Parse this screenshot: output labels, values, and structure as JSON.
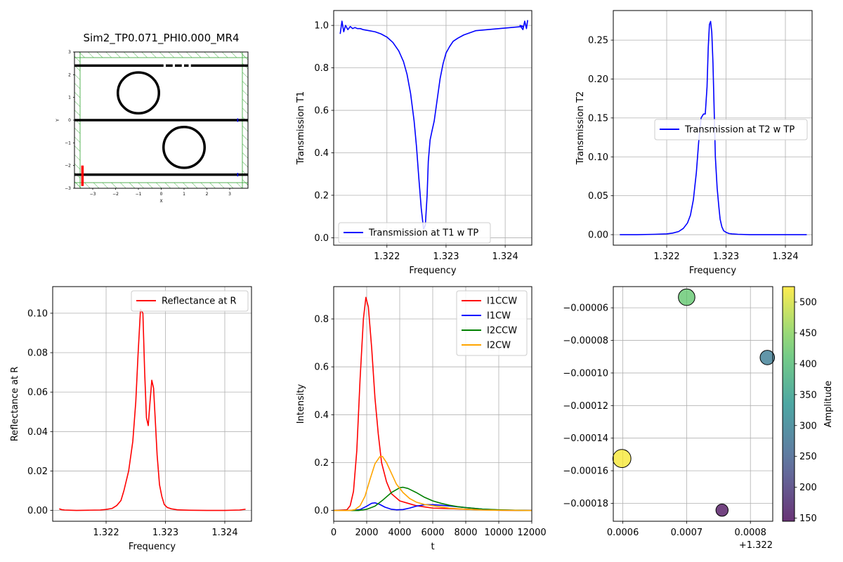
{
  "chart_data": [
    {
      "id": "layout",
      "type": "diagram",
      "title": "Sim2_TP0.071_PHI0.000_MR4",
      "xlabel": "X",
      "ylabel": "Y",
      "xlim": [
        -3.8,
        3.8
      ],
      "ylim": [
        -3,
        3
      ],
      "xticks": [
        -3,
        -2,
        -1,
        0,
        1,
        2,
        3
      ],
      "yticks": [
        -3,
        -2,
        -1,
        0,
        1,
        2,
        3
      ],
      "xtick_labels": [
        "−3",
        "−2",
        "−1",
        "0",
        "1",
        "2",
        "3"
      ],
      "ytick_labels": [
        "−3",
        "−2",
        "−1",
        "0",
        "1",
        "2",
        "3"
      ],
      "waveguides_y": [
        2.4,
        0,
        -2.4
      ],
      "rings": [
        {
          "cx": -1,
          "cy": 1.2,
          "r": 0.9
        },
        {
          "cx": 1,
          "cy": -1.2,
          "r": 0.9
        }
      ],
      "source": {
        "x": -3.45,
        "y0": -2.9,
        "y1": -2.0
      },
      "colors": {
        "structure": "#000000",
        "pml": "#2ca02c",
        "source": "#ff0000",
        "monitor": "#0000ff"
      }
    },
    {
      "id": "t1",
      "type": "line",
      "xlabel": "Frequency",
      "ylabel": "Transmission T1",
      "xlim": [
        1.3211,
        1.32445
      ],
      "ylim": [
        -0.035,
        1.07
      ],
      "xticks": [
        1.322,
        1.323,
        1.324
      ],
      "xtick_labels": [
        "1.322",
        "1.323",
        "1.324"
      ],
      "yticks": [
        0.0,
        0.2,
        0.4,
        0.6,
        0.8,
        1.0
      ],
      "ytick_labels": [
        "0.0",
        "0.2",
        "0.4",
        "0.6",
        "0.8",
        "1.0"
      ],
      "legend": "lower-center",
      "grid": true,
      "series": [
        {
          "name": "Transmission at T1 w TP",
          "color": "#0000ff",
          "x": [
            1.32121,
            1.32124,
            1.32127,
            1.3213,
            1.32134,
            1.32138,
            1.32142,
            1.32146,
            1.3215,
            1.32155,
            1.3216,
            1.3217,
            1.3218,
            1.3219,
            1.322,
            1.3221,
            1.3222,
            1.32228,
            1.32234,
            1.3224,
            1.32246,
            1.3225,
            1.32254,
            1.32258,
            1.32262,
            1.32265,
            1.32268,
            1.3227,
            1.32273,
            1.32276,
            1.3228,
            1.32285,
            1.3229,
            1.32295,
            1.323,
            1.32306,
            1.32312,
            1.3232,
            1.3233,
            1.3234,
            1.3235,
            1.3237,
            1.3239,
            1.3241,
            1.3243,
            1.32425,
            1.3243,
            1.32433,
            1.32436,
            1.32438
          ],
          "y": [
            0.96,
            1.02,
            0.97,
            1.0,
            0.98,
            0.995,
            0.985,
            0.99,
            0.985,
            0.985,
            0.98,
            0.975,
            0.97,
            0.96,
            0.945,
            0.92,
            0.88,
            0.83,
            0.77,
            0.68,
            0.55,
            0.43,
            0.28,
            0.14,
            0.04,
            0.06,
            0.2,
            0.36,
            0.46,
            0.5,
            0.55,
            0.65,
            0.75,
            0.82,
            0.87,
            0.9,
            0.925,
            0.94,
            0.955,
            0.965,
            0.975,
            0.98,
            0.985,
            0.99,
            0.995,
            1.0,
            0.98,
            1.02,
            0.985,
            1.025
          ]
        }
      ]
    },
    {
      "id": "t2",
      "type": "line",
      "xlabel": "Frequency",
      "ylabel": "Transmission T2",
      "xlim": [
        1.3211,
        1.32445
      ],
      "ylim": [
        -0.0135,
        0.288
      ],
      "xticks": [
        1.322,
        1.323,
        1.324
      ],
      "xtick_labels": [
        "1.322",
        "1.323",
        "1.324"
      ],
      "yticks": [
        0.0,
        0.05,
        0.1,
        0.15,
        0.2,
        0.25
      ],
      "ytick_labels": [
        "0.00",
        "0.05",
        "0.10",
        "0.15",
        "0.20",
        "0.25"
      ],
      "legend": "center-right",
      "grid": true,
      "series": [
        {
          "name": "Transmission at T2 w TP",
          "color": "#0000ff",
          "x": [
            1.32121,
            1.3215,
            1.3218,
            1.322,
            1.3221,
            1.3222,
            1.32228,
            1.32235,
            1.3224,
            1.32245,
            1.3225,
            1.32254,
            1.32258,
            1.32262,
            1.32265,
            1.32268,
            1.3227,
            1.32272,
            1.32274,
            1.32276,
            1.32278,
            1.3228,
            1.32282,
            1.32285,
            1.32288,
            1.3229,
            1.32293,
            1.32296,
            1.323,
            1.32305,
            1.3231,
            1.3232,
            1.3234,
            1.3237,
            1.324,
            1.32436
          ],
          "y": [
            0.0,
            0.0,
            0.0005,
            0.001,
            0.002,
            0.004,
            0.008,
            0.015,
            0.025,
            0.045,
            0.08,
            0.12,
            0.15,
            0.155,
            0.155,
            0.19,
            0.24,
            0.27,
            0.274,
            0.26,
            0.22,
            0.16,
            0.1,
            0.06,
            0.035,
            0.02,
            0.01,
            0.005,
            0.003,
            0.0015,
            0.001,
            0.0005,
            0.0,
            0.0,
            0.0,
            0.0
          ]
        }
      ]
    },
    {
      "id": "refl",
      "type": "line",
      "xlabel": "Frequency",
      "ylabel": "Reflectance at R",
      "xlim": [
        1.3211,
        1.32445
      ],
      "ylim": [
        -0.0055,
        0.1135
      ],
      "xticks": [
        1.322,
        1.323,
        1.324
      ],
      "xtick_labels": [
        "1.322",
        "1.323",
        "1.324"
      ],
      "yticks": [
        0.0,
        0.02,
        0.04,
        0.06,
        0.08,
        0.1
      ],
      "ytick_labels": [
        "0.00",
        "0.02",
        "0.04",
        "0.06",
        "0.08",
        "0.10"
      ],
      "legend": "top-right",
      "grid": true,
      "series": [
        {
          "name": "Reflectance at R",
          "color": "#ff0000",
          "x": [
            1.32121,
            1.32125,
            1.3213,
            1.3214,
            1.3215,
            1.3217,
            1.3219,
            1.322,
            1.3221,
            1.32218,
            1.32225,
            1.3223,
            1.32238,
            1.32245,
            1.3225,
            1.32254,
            1.32258,
            1.32262,
            1.32265,
            1.32268,
            1.32271,
            1.32274,
            1.32277,
            1.3228,
            1.32283,
            1.32286,
            1.3229,
            1.32294,
            1.32298,
            1.32303,
            1.3231,
            1.3232,
            1.3234,
            1.3237,
            1.324,
            1.32425,
            1.32435
          ],
          "y": [
            0.0008,
            0.0004,
            0.0002,
            0.0001,
            0.0,
            0.0001,
            0.0002,
            0.0005,
            0.001,
            0.0025,
            0.005,
            0.01,
            0.02,
            0.035,
            0.055,
            0.08,
            0.102,
            0.1,
            0.07,
            0.047,
            0.043,
            0.055,
            0.066,
            0.062,
            0.045,
            0.028,
            0.013,
            0.007,
            0.003,
            0.0015,
            0.0008,
            0.0003,
            0.0001,
            0.0,
            0.0,
            0.0002,
            0.0006
          ]
        }
      ]
    },
    {
      "id": "intensity",
      "type": "line",
      "xlabel": "t",
      "ylabel": "Intensity",
      "xlim": [
        0,
        12000
      ],
      "ylim": [
        -0.045,
        0.935
      ],
      "xticks": [
        0,
        2000,
        4000,
        6000,
        8000,
        10000,
        12000
      ],
      "xtick_labels": [
        "0",
        "2000",
        "4000",
        "6000",
        "8000",
        "10000",
        "12000"
      ],
      "yticks": [
        0.0,
        0.2,
        0.4,
        0.6,
        0.8
      ],
      "ytick_labels": [
        "0.0",
        "0.2",
        "0.4",
        "0.6",
        "0.8"
      ],
      "legend": "top-right",
      "grid": true,
      "series": [
        {
          "name": "I1CCW",
          "color": "#ff0000",
          "x": [
            0,
            800,
            1000,
            1200,
            1400,
            1600,
            1800,
            1950,
            2100,
            2300,
            2500,
            2700,
            2900,
            3200,
            3500,
            4000,
            4500,
            5000,
            5500,
            6000,
            7000,
            8000,
            9000,
            10000,
            12000
          ],
          "y": [
            0,
            0.003,
            0.02,
            0.08,
            0.25,
            0.55,
            0.8,
            0.89,
            0.85,
            0.68,
            0.47,
            0.32,
            0.2,
            0.12,
            0.07,
            0.04,
            0.03,
            0.02,
            0.015,
            0.01,
            0.008,
            0.005,
            0.003,
            0.001,
            0.0
          ]
        },
        {
          "name": "I1CW",
          "color": "#0000ff",
          "x": [
            0,
            1200,
            1600,
            2000,
            2300,
            2500,
            2800,
            3100,
            3500,
            3800,
            4200,
            4600,
            5000,
            5500,
            6000,
            6500,
            7000,
            8000,
            9000,
            10000,
            12000
          ],
          "y": [
            0,
            0.0,
            0.004,
            0.018,
            0.03,
            0.032,
            0.025,
            0.014,
            0.005,
            0.003,
            0.004,
            0.01,
            0.018,
            0.024,
            0.024,
            0.022,
            0.019,
            0.012,
            0.006,
            0.002,
            0.0
          ]
        },
        {
          "name": "I2CCW",
          "color": "#008000",
          "x": [
            0,
            1500,
            2000,
            2500,
            3000,
            3500,
            4000,
            4200,
            4500,
            5000,
            5500,
            6000,
            6500,
            7000,
            7500,
            8000,
            9000,
            10000,
            11000,
            12000
          ],
          "y": [
            0,
            0.0,
            0.005,
            0.018,
            0.045,
            0.075,
            0.095,
            0.097,
            0.092,
            0.075,
            0.055,
            0.04,
            0.03,
            0.022,
            0.016,
            0.012,
            0.006,
            0.003,
            0.001,
            0.0
          ]
        },
        {
          "name": "I2CW",
          "color": "#ffa500",
          "x": [
            0,
            1000,
            1300,
            1600,
            1900,
            2200,
            2500,
            2800,
            2950,
            3200,
            3500,
            3800,
            4200,
            4600,
            5000,
            5500,
            6000,
            7000,
            8000,
            9000,
            10000,
            12000
          ],
          "y": [
            0,
            0.0,
            0.004,
            0.02,
            0.06,
            0.13,
            0.195,
            0.225,
            0.226,
            0.2,
            0.155,
            0.11,
            0.075,
            0.05,
            0.035,
            0.025,
            0.02,
            0.01,
            0.005,
            0.002,
            0.001,
            0.0
          ]
        }
      ]
    },
    {
      "id": "scatter",
      "type": "scatter",
      "xlabel": "",
      "ylabel": "",
      "x_offset_label": "+1.322",
      "xlim": [
        0.000585,
        0.000835
      ],
      "ylim": [
        -0.000191,
        -4.7e-05
      ],
      "xticks": [
        0.0006,
        0.0007,
        0.0008
      ],
      "xtick_labels": [
        "0.0006",
        "0.0007",
        "0.0008"
      ],
      "yticks": [
        -0.00018,
        -0.00016,
        -0.00014,
        -0.00012,
        -0.0001,
        -8e-05,
        -6e-05
      ],
      "ytick_labels": [
        "−0.00018",
        "−0.00016",
        "−0.00014",
        "−0.00012",
        "−0.00010",
        "−0.00008",
        "−0.00006"
      ],
      "grid": true,
      "colorbar": {
        "label": "Amplitude",
        "range": [
          145,
          525
        ],
        "ticks": [
          150,
          200,
          250,
          300,
          350,
          400,
          450,
          500
        ],
        "tick_labels": [
          "150",
          "200",
          "250",
          "300",
          "350",
          "400",
          "450",
          "500"
        ]
      },
      "points": [
        {
          "x": 0.0005985,
          "y": -0.0001525,
          "amplitude": 520
        },
        {
          "x": 0.0007,
          "y": -5.35e-05,
          "amplitude": 420
        },
        {
          "x": 0.0008265,
          "y": -9.05e-05,
          "amplitude": 290
        },
        {
          "x": 0.0007555,
          "y": -0.0001842,
          "amplitude": 150
        }
      ]
    }
  ]
}
